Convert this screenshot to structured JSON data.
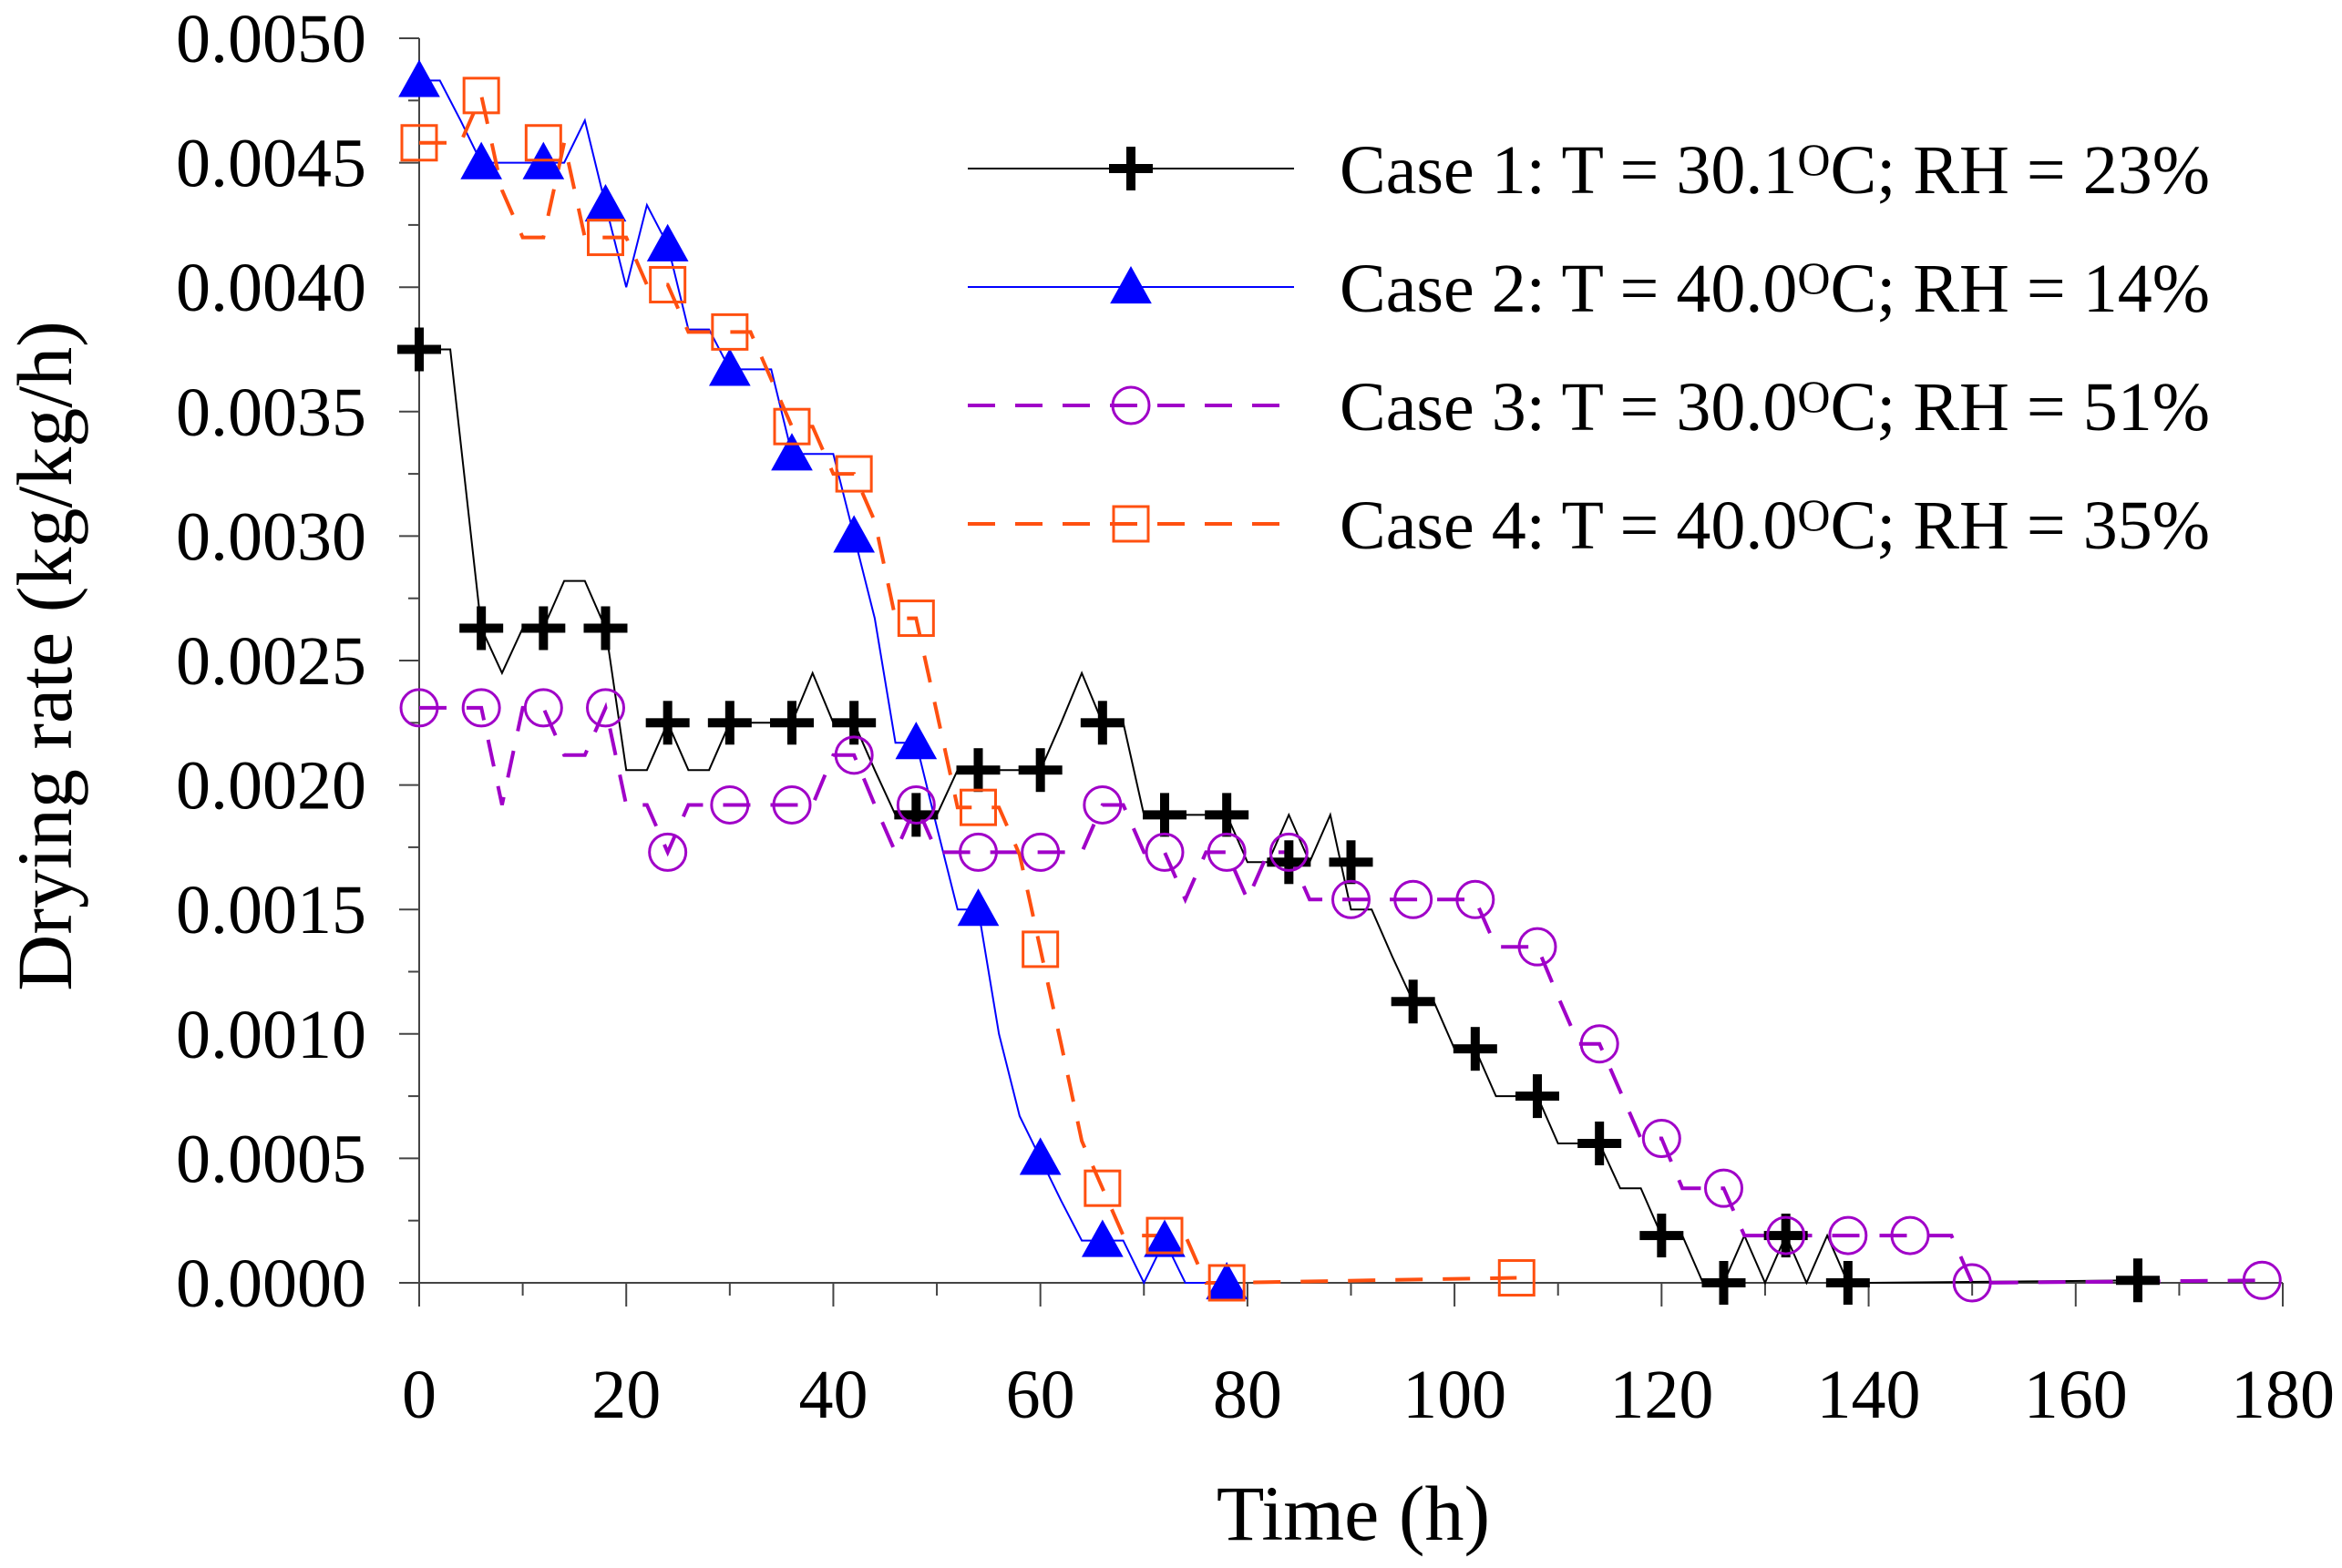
{
  "chart_data": {
    "type": "line",
    "title": "",
    "xlabel": "Time (h)",
    "ylabel": "Drying rate (kg/kg/h)",
    "xlim": [
      0,
      180
    ],
    "ylim": [
      0,
      0.005
    ],
    "x_ticks": [
      0,
      20,
      40,
      60,
      80,
      100,
      120,
      140,
      160,
      180
    ],
    "x_tick_labels": [
      "0",
      "20",
      "40",
      "60",
      "80",
      "100",
      "120",
      "140",
      "160",
      "180"
    ],
    "y_ticks": [
      0,
      0.0005,
      0.001,
      0.0015,
      0.002,
      0.0025,
      0.003,
      0.0035,
      0.004,
      0.0045,
      0.005
    ],
    "y_tick_labels": [
      "0.0000",
      "0.0005",
      "0.0010",
      "0.0015",
      "0.0020",
      "0.0025",
      "0.0030",
      "0.0035",
      "0.0040",
      "0.0045",
      "0.0050"
    ],
    "legend_position": "top-right",
    "series": [
      {
        "name": "Case 1",
        "legend_label": "Case 1: T = 30.1",
        "legend_suffix": "C; RH = 23%",
        "legend_degree": "O",
        "color": "#000000",
        "marker": "plus",
        "dash": "solid",
        "marker_x": [
          0,
          6,
          12,
          18,
          24,
          30,
          36,
          42,
          48,
          54,
          60,
          66,
          72,
          78,
          84,
          90,
          96,
          102,
          108,
          114,
          120,
          126,
          132,
          138,
          166
        ],
        "marker_y": [
          0.00375,
          0.00263,
          0.00263,
          0.00263,
          0.00225,
          0.00225,
          0.00225,
          0.00225,
          0.00188,
          0.00206,
          0.00206,
          0.00225,
          0.00188,
          0.00188,
          0.00169,
          0.00169,
          0.00113,
          0.00094,
          0.00075,
          0.00056,
          0.00019,
          0.0,
          0.00019,
          0.0,
          1e-05
        ],
        "line_x": [
          0,
          3,
          6,
          8,
          10,
          12,
          14,
          16,
          18,
          20,
          22,
          24,
          26,
          28,
          30,
          32,
          34,
          36,
          38,
          40,
          42,
          44,
          46,
          48,
          50,
          52,
          54,
          56,
          58,
          60,
          62,
          64,
          66,
          68,
          70,
          72,
          74,
          76,
          78,
          80,
          82,
          84,
          86,
          88,
          90,
          92,
          94,
          96,
          98,
          100,
          102,
          104,
          106,
          108,
          110,
          112,
          114,
          116,
          118,
          120,
          122,
          124,
          126,
          128,
          130,
          132,
          134,
          136,
          138,
          140,
          166
        ],
        "line_y": [
          0.00375,
          0.00375,
          0.00263,
          0.00245,
          0.00263,
          0.00263,
          0.00282,
          0.00282,
          0.00263,
          0.00206,
          0.00206,
          0.00225,
          0.00206,
          0.00206,
          0.00225,
          0.00225,
          0.00225,
          0.00225,
          0.00245,
          0.00225,
          0.00225,
          0.00206,
          0.00188,
          0.00188,
          0.00188,
          0.00206,
          0.00206,
          0.00206,
          0.00206,
          0.00206,
          0.00225,
          0.00245,
          0.00225,
          0.00225,
          0.00188,
          0.00188,
          0.00188,
          0.00188,
          0.00188,
          0.00169,
          0.00169,
          0.00188,
          0.00169,
          0.00188,
          0.0015,
          0.0015,
          0.00131,
          0.00113,
          0.00113,
          0.00094,
          0.00094,
          0.00075,
          0.00075,
          0.00075,
          0.00056,
          0.00056,
          0.00056,
          0.00038,
          0.00038,
          0.00019,
          0.00019,
          0.0,
          0.0,
          0.00019,
          0.0,
          0.00019,
          0.0,
          0.00019,
          0.0,
          0.0,
          1e-05
        ]
      },
      {
        "name": "Case 2",
        "legend_label": "Case 2: T = 40.0",
        "legend_suffix": "C; RH = 14%",
        "legend_degree": "O",
        "color": "#0000ff",
        "marker": "triangle",
        "dash": "solid",
        "marker_x": [
          0,
          6,
          12,
          18,
          24,
          30,
          36,
          42,
          48,
          54,
          60,
          66,
          72,
          78
        ],
        "marker_y": [
          0.00483,
          0.0045,
          0.0045,
          0.00433,
          0.00417,
          0.00367,
          0.00333,
          0.003,
          0.00217,
          0.0015,
          0.0005,
          0.00017,
          0.00017,
          0.0
        ],
        "line_x": [
          0,
          2,
          4,
          6,
          8,
          10,
          12,
          14,
          16,
          18,
          20,
          22,
          24,
          26,
          28,
          30,
          32,
          34,
          36,
          38,
          40,
          42,
          44,
          46,
          48,
          50,
          52,
          54,
          56,
          58,
          60,
          62,
          64,
          66,
          68,
          70,
          72,
          74,
          76,
          78
        ],
        "line_y": [
          0.00483,
          0.00483,
          0.00467,
          0.0045,
          0.0045,
          0.0045,
          0.0045,
          0.0045,
          0.00467,
          0.00433,
          0.004,
          0.00433,
          0.00417,
          0.00383,
          0.00383,
          0.00367,
          0.00367,
          0.00367,
          0.00333,
          0.00333,
          0.00333,
          0.003,
          0.00267,
          0.00217,
          0.00217,
          0.00183,
          0.0015,
          0.0015,
          0.001,
          0.00067,
          0.0005,
          0.00033,
          0.00017,
          0.00017,
          0.00017,
          0.0,
          0.00017,
          0.0,
          0.0,
          0.0
        ]
      },
      {
        "name": "Case 3",
        "legend_label": "Case 3: T = 30.0",
        "legend_suffix": "C; RH = 51%",
        "legend_degree": "O",
        "color": "#a000c8",
        "marker": "circle",
        "dash": "dashed",
        "marker_x": [
          0,
          6,
          12,
          18,
          24,
          30,
          36,
          42,
          48,
          54,
          60,
          66,
          72,
          78,
          84,
          90,
          96,
          102,
          108,
          114,
          120,
          126,
          132,
          138,
          144,
          150,
          178
        ],
        "marker_y": [
          0.00231,
          0.00231,
          0.00231,
          0.00231,
          0.00173,
          0.00192,
          0.00192,
          0.00212,
          0.00192,
          0.00173,
          0.00173,
          0.00192,
          0.00173,
          0.00173,
          0.00173,
          0.00154,
          0.00154,
          0.00154,
          0.00135,
          0.00096,
          0.00058,
          0.00038,
          0.00019,
          0.00019,
          0.00019,
          0.0,
          1e-05
        ],
        "line_x": [
          0,
          4,
          6,
          8,
          10,
          12,
          14,
          16,
          18,
          20,
          22,
          24,
          26,
          28,
          30,
          32,
          34,
          36,
          38,
          40,
          42,
          44,
          46,
          48,
          50,
          52,
          54,
          56,
          58,
          60,
          62,
          64,
          66,
          68,
          70,
          72,
          74,
          76,
          78,
          80,
          82,
          84,
          86,
          88,
          90,
          92,
          94,
          96,
          98,
          100,
          102,
          104,
          106,
          108,
          110,
          112,
          114,
          116,
          118,
          120,
          122,
          124,
          126,
          128,
          130,
          132,
          134,
          136,
          138,
          140,
          142,
          144,
          146,
          148,
          150,
          178
        ],
        "line_y": [
          0.00231,
          0.00231,
          0.00231,
          0.00192,
          0.00231,
          0.00231,
          0.00212,
          0.00212,
          0.00231,
          0.00192,
          0.00192,
          0.00173,
          0.00192,
          0.00192,
          0.00192,
          0.00192,
          0.00192,
          0.00192,
          0.00192,
          0.00212,
          0.00212,
          0.00192,
          0.00173,
          0.00192,
          0.00173,
          0.00173,
          0.00173,
          0.00173,
          0.00173,
          0.00173,
          0.00173,
          0.00173,
          0.00192,
          0.00192,
          0.00173,
          0.00173,
          0.00154,
          0.00173,
          0.00173,
          0.00154,
          0.00173,
          0.00173,
          0.00154,
          0.00154,
          0.00154,
          0.00154,
          0.00154,
          0.00154,
          0.00154,
          0.00154,
          0.00154,
          0.00135,
          0.00135,
          0.00135,
          0.00115,
          0.00096,
          0.00096,
          0.00077,
          0.00058,
          0.00058,
          0.00038,
          0.00038,
          0.00038,
          0.00019,
          0.00019,
          0.00019,
          0.00019,
          0.00019,
          0.00019,
          0.00019,
          0.00019,
          0.00019,
          0.00019,
          0.00019,
          0.0,
          1e-05
        ]
      },
      {
        "name": "Case 4",
        "legend_label": "Case 4: T = 40.0",
        "legend_suffix": "C; RH = 35%",
        "legend_degree": "O",
        "color": "#ff5010",
        "marker": "square",
        "dash": "dashed",
        "marker_x": [
          0,
          6,
          12,
          18,
          24,
          30,
          36,
          42,
          48,
          54,
          60,
          66,
          72,
          78,
          106
        ],
        "marker_y": [
          0.00458,
          0.00477,
          0.00458,
          0.0042,
          0.00401,
          0.00382,
          0.00344,
          0.00325,
          0.00267,
          0.00191,
          0.00134,
          0.00038,
          0.00019,
          0.0,
          2e-05
        ],
        "line_x": [
          0,
          4,
          6,
          8,
          10,
          12,
          14,
          16,
          18,
          20,
          22,
          24,
          26,
          28,
          30,
          32,
          34,
          36,
          38,
          40,
          42,
          44,
          46,
          48,
          50,
          52,
          54,
          56,
          58,
          60,
          62,
          64,
          66,
          68,
          70,
          72,
          74,
          76,
          78,
          106
        ],
        "line_y": [
          0.00458,
          0.00458,
          0.00477,
          0.00439,
          0.0042,
          0.0042,
          0.00458,
          0.0042,
          0.0042,
          0.0042,
          0.00401,
          0.00401,
          0.00382,
          0.00382,
          0.00382,
          0.00382,
          0.00363,
          0.00344,
          0.00344,
          0.00325,
          0.00325,
          0.00306,
          0.00267,
          0.00267,
          0.00229,
          0.00191,
          0.00191,
          0.00191,
          0.00172,
          0.00134,
          0.00096,
          0.00057,
          0.00038,
          0.00019,
          0.00019,
          0.00019,
          0.00019,
          0.0,
          0.0,
          2e-05
        ]
      }
    ]
  }
}
